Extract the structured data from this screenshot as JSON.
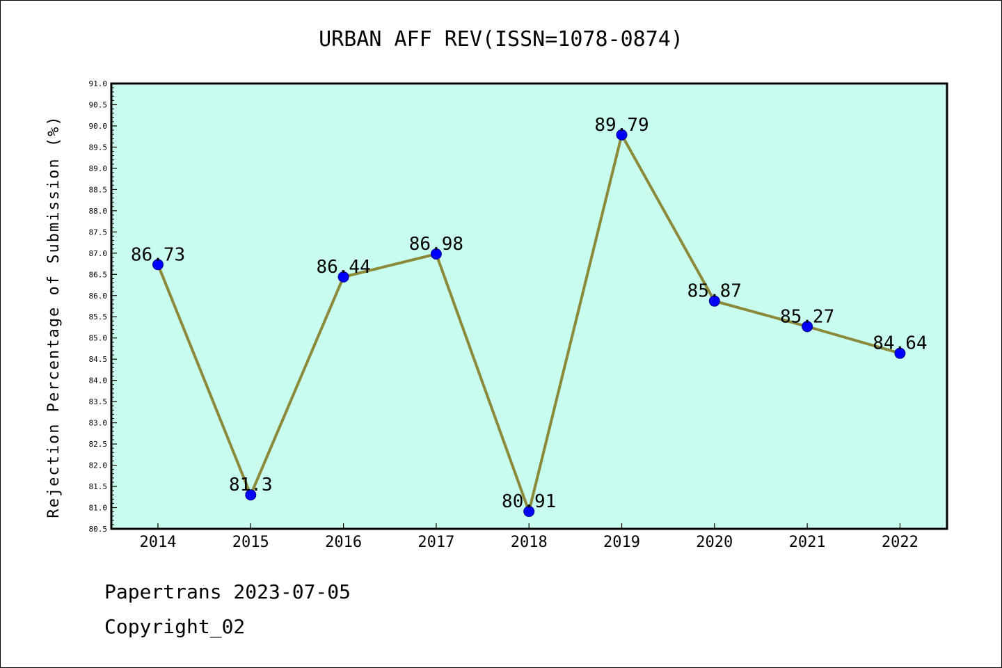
{
  "chart_data": {
    "type": "line",
    "title": "URBAN AFF REV(ISSN=1078-0874)",
    "xlabel": "",
    "ylabel": "Rejection Percentage of Submission (%)",
    "categories": [
      "2014",
      "2015",
      "2016",
      "2017",
      "2018",
      "2019",
      "2020",
      "2021",
      "2022"
    ],
    "series": [
      {
        "values": [
          86.73,
          81.3,
          86.44,
          86.98,
          80.91,
          89.79,
          85.87,
          85.27,
          84.64
        ],
        "labels": [
          "86.73",
          "81.3",
          "86.44",
          "86.98",
          "80.91",
          "89.79",
          "85.87",
          "85.27",
          "84.64"
        ]
      }
    ],
    "ylim": [
      80.5,
      91.0
    ],
    "yticks": [
      "80.5",
      "81.0",
      "81.5",
      "82.0",
      "82.5",
      "83.0",
      "83.5",
      "84.0",
      "84.5",
      "85.0",
      "85.5",
      "86.0",
      "86.5",
      "87.0",
      "87.5",
      "88.0",
      "88.5",
      "89.0",
      "89.5",
      "90.0",
      "90.5",
      "91.0"
    ],
    "grid": false,
    "legend": "none",
    "colors": {
      "plot_background": "#c8fcee",
      "line": "#8b8a3a",
      "marker": "#0000ff"
    }
  },
  "footer": {
    "line1": "Papertrans 2023-07-05",
    "line2": "Copyright_02"
  }
}
